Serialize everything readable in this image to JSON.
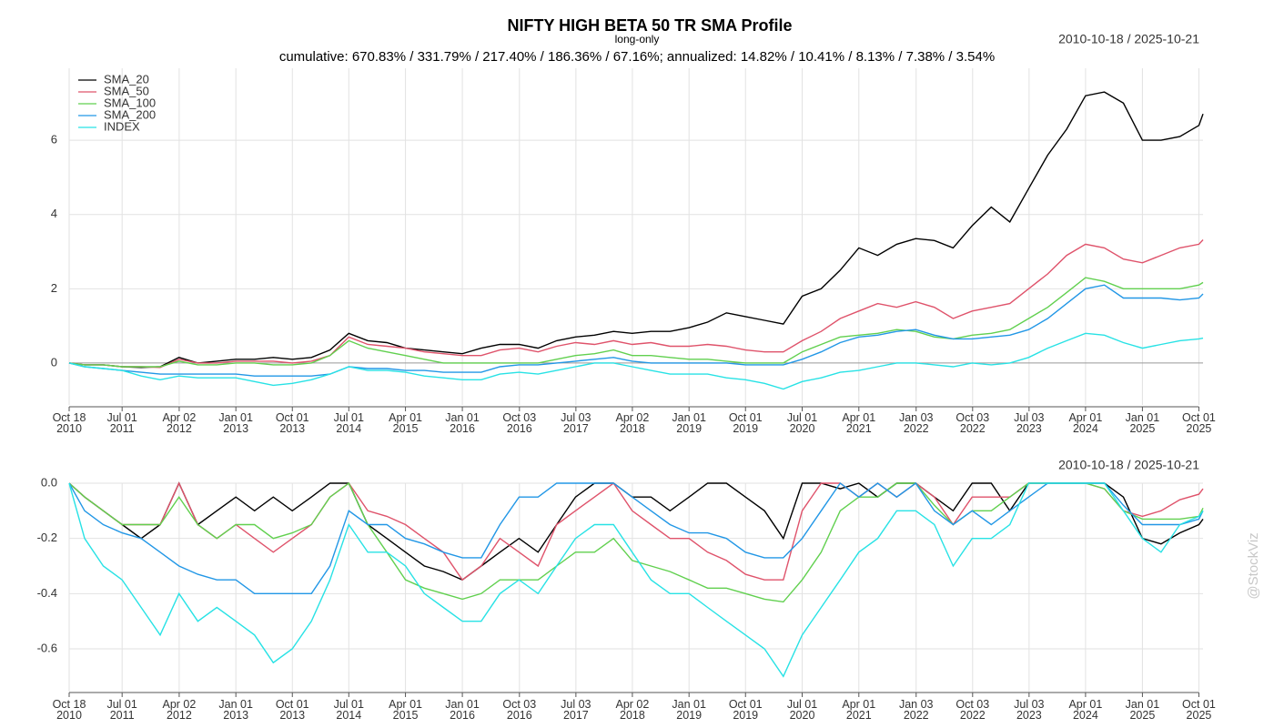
{
  "watermark": "@StockViz",
  "chart_data": [
    {
      "type": "line",
      "title": "NIFTY HIGH BETA 50 TR SMA Profile",
      "subtitle": "long-only",
      "annotation": "cumulative: 670.83% / 331.79% / 217.40% / 186.36% / 67.16%; annualized: 14.82% / 10.41% / 8.13% / 7.38% / 3.54%",
      "date_range": "2010-10-18 / 2025-10-21",
      "legend": "topleft",
      "grid": true,
      "xlim": [
        "2010-10-18",
        "2025-10-21"
      ],
      "ylim": [
        -1.13,
        7.94
      ],
      "yticks": [
        0,
        2,
        4,
        6
      ],
      "xticks": [
        {
          "value": "2010-10-18",
          "label": "Oct 18\n2010"
        },
        {
          "value": "2011-07-01",
          "label": "Jul 01\n2011"
        },
        {
          "value": "2012-04-02",
          "label": "Apr 02\n2012"
        },
        {
          "value": "2013-01-01",
          "label": "Jan 01\n2013"
        },
        {
          "value": "2013-10-01",
          "label": "Oct 01\n2013"
        },
        {
          "value": "2014-07-01",
          "label": "Jul 01\n2014"
        },
        {
          "value": "2015-04-01",
          "label": "Apr 01\n2015"
        },
        {
          "value": "2016-01-01",
          "label": "Jan 01\n2016"
        },
        {
          "value": "2016-10-03",
          "label": "Oct 03\n2016"
        },
        {
          "value": "2017-07-03",
          "label": "Jul 03\n2017"
        },
        {
          "value": "2018-04-02",
          "label": "Apr 02\n2018"
        },
        {
          "value": "2019-01-01",
          "label": "Jan 01\n2019"
        },
        {
          "value": "2019-10-01",
          "label": "Oct 01\n2019"
        },
        {
          "value": "2020-07-01",
          "label": "Jul 01\n2020"
        },
        {
          "value": "2021-04-01",
          "label": "Apr 01\n2021"
        },
        {
          "value": "2022-01-03",
          "label": "Jan 03\n2022"
        },
        {
          "value": "2022-10-03",
          "label": "Oct 03\n2022"
        },
        {
          "value": "2023-07-03",
          "label": "Jul 03\n2023"
        },
        {
          "value": "2024-04-01",
          "label": "Apr 01\n2024"
        },
        {
          "value": "2025-01-01",
          "label": "Jan 01\n2025"
        },
        {
          "value": "2025-10-01",
          "label": "Oct 01\n2025"
        }
      ],
      "x": [
        "2010-10-18",
        "2011-01-01",
        "2011-04-01",
        "2011-07-01",
        "2011-10-01",
        "2012-01-01",
        "2012-04-01",
        "2012-07-01",
        "2012-10-01",
        "2013-01-01",
        "2013-04-01",
        "2013-07-01",
        "2013-10-01",
        "2014-01-01",
        "2014-04-01",
        "2014-07-01",
        "2014-10-01",
        "2015-01-01",
        "2015-04-01",
        "2015-07-01",
        "2015-10-01",
        "2016-01-01",
        "2016-04-01",
        "2016-07-01",
        "2016-10-01",
        "2017-01-01",
        "2017-04-01",
        "2017-07-01",
        "2017-10-01",
        "2018-01-01",
        "2018-04-01",
        "2018-07-01",
        "2018-10-01",
        "2019-01-01",
        "2019-04-01",
        "2019-07-01",
        "2019-10-01",
        "2020-01-01",
        "2020-04-01",
        "2020-07-01",
        "2020-10-01",
        "2021-01-01",
        "2021-04-01",
        "2021-07-01",
        "2021-10-01",
        "2022-01-01",
        "2022-04-01",
        "2022-07-01",
        "2022-10-01",
        "2023-01-01",
        "2023-04-01",
        "2023-07-01",
        "2023-10-01",
        "2024-01-01",
        "2024-04-01",
        "2024-07-01",
        "2024-10-01",
        "2025-01-01",
        "2025-04-01",
        "2025-07-01",
        "2025-10-01",
        "2025-10-21"
      ],
      "series": [
        {
          "name": "SMA_20",
          "color": "#000000",
          "values": [
            0,
            -0.05,
            -0.05,
            -0.1,
            -0.12,
            -0.1,
            0.15,
            0.0,
            0.05,
            0.1,
            0.1,
            0.15,
            0.1,
            0.15,
            0.35,
            0.8,
            0.6,
            0.55,
            0.4,
            0.35,
            0.3,
            0.25,
            0.4,
            0.5,
            0.5,
            0.4,
            0.6,
            0.7,
            0.75,
            0.85,
            0.8,
            0.85,
            0.85,
            0.95,
            1.1,
            1.35,
            1.25,
            1.15,
            1.05,
            1.8,
            2.0,
            2.5,
            3.1,
            2.9,
            3.2,
            3.35,
            3.3,
            3.1,
            3.7,
            4.2,
            3.8,
            4.7,
            5.6,
            6.3,
            7.2,
            7.3,
            7.0,
            6.0,
            6.0,
            6.1,
            6.4,
            6.71
          ]
        },
        {
          "name": "SMA_50",
          "color": "#df536b",
          "values": [
            0,
            -0.05,
            -0.05,
            -0.1,
            -0.1,
            -0.12,
            0.1,
            0.0,
            0.0,
            0.05,
            0.05,
            0.05,
            0.0,
            0.05,
            0.2,
            0.7,
            0.5,
            0.45,
            0.4,
            0.3,
            0.25,
            0.2,
            0.2,
            0.35,
            0.4,
            0.3,
            0.45,
            0.55,
            0.5,
            0.6,
            0.5,
            0.55,
            0.45,
            0.45,
            0.5,
            0.45,
            0.35,
            0.3,
            0.3,
            0.6,
            0.85,
            1.2,
            1.4,
            1.6,
            1.5,
            1.65,
            1.5,
            1.2,
            1.4,
            1.5,
            1.6,
            2.0,
            2.4,
            2.9,
            3.2,
            3.1,
            2.8,
            2.7,
            2.9,
            3.1,
            3.2,
            3.32
          ]
        },
        {
          "name": "SMA_100",
          "color": "#61d04f",
          "values": [
            0,
            -0.05,
            -0.05,
            -0.1,
            -0.1,
            -0.1,
            0.05,
            -0.05,
            -0.05,
            0.0,
            0.0,
            -0.05,
            -0.05,
            0.0,
            0.2,
            0.6,
            0.4,
            0.3,
            0.2,
            0.1,
            0.0,
            0.0,
            0.0,
            0.0,
            0.0,
            0.0,
            0.1,
            0.2,
            0.25,
            0.35,
            0.2,
            0.2,
            0.15,
            0.1,
            0.1,
            0.05,
            0.0,
            0.0,
            0.0,
            0.3,
            0.5,
            0.7,
            0.75,
            0.8,
            0.9,
            0.85,
            0.7,
            0.65,
            0.75,
            0.8,
            0.9,
            1.2,
            1.5,
            1.9,
            2.3,
            2.2,
            2.0,
            2.0,
            2.0,
            2.0,
            2.1,
            2.17
          ]
        },
        {
          "name": "SMA_200",
          "color": "#2297e6",
          "values": [
            0,
            -0.1,
            -0.15,
            -0.2,
            -0.25,
            -0.3,
            -0.3,
            -0.3,
            -0.3,
            -0.3,
            -0.35,
            -0.35,
            -0.35,
            -0.35,
            -0.3,
            -0.1,
            -0.15,
            -0.15,
            -0.2,
            -0.2,
            -0.25,
            -0.25,
            -0.25,
            -0.1,
            -0.05,
            -0.05,
            0.0,
            0.05,
            0.1,
            0.15,
            0.05,
            0.0,
            0.0,
            0.0,
            0.0,
            0.0,
            -0.05,
            -0.05,
            -0.05,
            0.1,
            0.3,
            0.55,
            0.7,
            0.75,
            0.85,
            0.9,
            0.75,
            0.65,
            0.65,
            0.7,
            0.75,
            0.9,
            1.2,
            1.6,
            2.0,
            2.1,
            1.75,
            1.75,
            1.75,
            1.7,
            1.75,
            1.86
          ]
        },
        {
          "name": "INDEX",
          "color": "#28e2e5",
          "values": [
            0,
            -0.1,
            -0.15,
            -0.2,
            -0.35,
            -0.45,
            -0.35,
            -0.4,
            -0.4,
            -0.4,
            -0.5,
            -0.6,
            -0.55,
            -0.45,
            -0.3,
            -0.1,
            -0.2,
            -0.2,
            -0.25,
            -0.35,
            -0.4,
            -0.45,
            -0.45,
            -0.3,
            -0.25,
            -0.3,
            -0.2,
            -0.1,
            0.0,
            0.0,
            -0.1,
            -0.2,
            -0.3,
            -0.3,
            -0.3,
            -0.4,
            -0.45,
            -0.55,
            -0.7,
            -0.5,
            -0.4,
            -0.25,
            -0.2,
            -0.1,
            0.0,
            0.0,
            -0.05,
            -0.1,
            0.0,
            -0.05,
            0.0,
            0.15,
            0.4,
            0.6,
            0.8,
            0.75,
            0.55,
            0.4,
            0.5,
            0.6,
            0.65,
            0.67
          ]
        }
      ]
    },
    {
      "type": "line",
      "date_range": "2010-10-18 / 2025-10-21",
      "grid": true,
      "xlim": [
        "2010-10-18",
        "2025-10-21"
      ],
      "ylim": [
        -0.755,
        0.0
      ],
      "yticks": [
        {
          "value": 0,
          "label": "0.0"
        },
        -0.2,
        -0.4,
        -0.6
      ],
      "xticks": [
        {
          "value": "2010-10-18",
          "label": "Oct 18\n2010"
        },
        {
          "value": "2011-07-01",
          "label": "Jul 01\n2011"
        },
        {
          "value": "2012-04-02",
          "label": "Apr 02\n2012"
        },
        {
          "value": "2013-01-01",
          "label": "Jan 01\n2013"
        },
        {
          "value": "2013-10-01",
          "label": "Oct 01\n2013"
        },
        {
          "value": "2014-07-01",
          "label": "Jul 01\n2014"
        },
        {
          "value": "2015-04-01",
          "label": "Apr 01\n2015"
        },
        {
          "value": "2016-01-01",
          "label": "Jan 01\n2016"
        },
        {
          "value": "2016-10-03",
          "label": "Oct 03\n2016"
        },
        {
          "value": "2017-07-03",
          "label": "Jul 03\n2017"
        },
        {
          "value": "2018-04-02",
          "label": "Apr 02\n2018"
        },
        {
          "value": "2019-01-01",
          "label": "Jan 01\n2019"
        },
        {
          "value": "2019-10-01",
          "label": "Oct 01\n2019"
        },
        {
          "value": "2020-07-01",
          "label": "Jul 01\n2020"
        },
        {
          "value": "2021-04-01",
          "label": "Apr 01\n2021"
        },
        {
          "value": "2022-01-03",
          "label": "Jan 03\n2022"
        },
        {
          "value": "2022-10-03",
          "label": "Oct 03\n2022"
        },
        {
          "value": "2023-07-03",
          "label": "Jul 03\n2023"
        },
        {
          "value": "2024-04-01",
          "label": "Apr 01\n2024"
        },
        {
          "value": "2025-01-01",
          "label": "Jan 01\n2025"
        },
        {
          "value": "2025-10-01",
          "label": "Oct 01\n2025"
        }
      ],
      "x": [
        "2010-10-18",
        "2011-01-01",
        "2011-04-01",
        "2011-07-01",
        "2011-10-01",
        "2012-01-01",
        "2012-04-01",
        "2012-07-01",
        "2012-10-01",
        "2013-01-01",
        "2013-04-01",
        "2013-07-01",
        "2013-10-01",
        "2014-01-01",
        "2014-04-01",
        "2014-07-01",
        "2014-10-01",
        "2015-01-01",
        "2015-04-01",
        "2015-07-01",
        "2015-10-01",
        "2016-01-01",
        "2016-04-01",
        "2016-07-01",
        "2016-10-01",
        "2017-01-01",
        "2017-04-01",
        "2017-07-01",
        "2017-10-01",
        "2018-01-01",
        "2018-04-01",
        "2018-07-01",
        "2018-10-01",
        "2019-01-01",
        "2019-04-01",
        "2019-07-01",
        "2019-10-01",
        "2020-01-01",
        "2020-04-01",
        "2020-07-01",
        "2020-10-01",
        "2021-01-01",
        "2021-04-01",
        "2021-07-01",
        "2021-10-01",
        "2022-01-01",
        "2022-04-01",
        "2022-07-01",
        "2022-10-01",
        "2023-01-01",
        "2023-04-01",
        "2023-07-01",
        "2023-10-01",
        "2024-01-01",
        "2024-04-01",
        "2024-07-01",
        "2024-10-01",
        "2025-01-01",
        "2025-04-01",
        "2025-07-01",
        "2025-10-01",
        "2025-10-21"
      ],
      "series": [
        {
          "color": "#000000",
          "values": [
            0,
            -0.05,
            -0.1,
            -0.15,
            -0.2,
            -0.15,
            0,
            -0.15,
            -0.1,
            -0.05,
            -0.1,
            -0.05,
            -0.1,
            -0.05,
            0,
            0,
            -0.15,
            -0.2,
            -0.25,
            -0.3,
            -0.32,
            -0.35,
            -0.3,
            -0.25,
            -0.2,
            -0.25,
            -0.15,
            -0.05,
            0,
            0,
            -0.05,
            -0.05,
            -0.1,
            -0.05,
            0,
            0,
            -0.05,
            -0.1,
            -0.2,
            0,
            0,
            -0.02,
            0,
            -0.05,
            0,
            0,
            -0.05,
            -0.1,
            0,
            0,
            -0.1,
            0,
            0,
            0,
            0,
            0,
            -0.05,
            -0.2,
            -0.22,
            -0.18,
            -0.15,
            -0.13
          ]
        },
        {
          "color": "#df536b",
          "values": [
            0,
            -0.05,
            -0.1,
            -0.15,
            -0.15,
            -0.15,
            0,
            -0.15,
            -0.2,
            -0.15,
            -0.2,
            -0.25,
            -0.2,
            -0.15,
            -0.05,
            0,
            -0.1,
            -0.12,
            -0.15,
            -0.2,
            -0.25,
            -0.35,
            -0.3,
            -0.2,
            -0.25,
            -0.3,
            -0.15,
            -0.1,
            -0.05,
            0,
            -0.1,
            -0.15,
            -0.2,
            -0.2,
            -0.25,
            -0.28,
            -0.33,
            -0.35,
            -0.35,
            -0.1,
            0,
            0,
            -0.05,
            0,
            -0.05,
            0,
            -0.05,
            -0.15,
            -0.05,
            -0.05,
            -0.05,
            0,
            0,
            0,
            0,
            -0.02,
            -0.1,
            -0.12,
            -0.1,
            -0.06,
            -0.04,
            -0.02
          ]
        },
        {
          "color": "#61d04f",
          "values": [
            0,
            -0.05,
            -0.1,
            -0.15,
            -0.15,
            -0.15,
            -0.05,
            -0.15,
            -0.2,
            -0.15,
            -0.15,
            -0.2,
            -0.18,
            -0.15,
            -0.05,
            0,
            -0.15,
            -0.25,
            -0.35,
            -0.38,
            -0.4,
            -0.42,
            -0.4,
            -0.35,
            -0.35,
            -0.35,
            -0.3,
            -0.25,
            -0.25,
            -0.2,
            -0.28,
            -0.3,
            -0.32,
            -0.35,
            -0.38,
            -0.38,
            -0.4,
            -0.42,
            -0.43,
            -0.35,
            -0.25,
            -0.1,
            -0.05,
            -0.05,
            0,
            0,
            -0.08,
            -0.15,
            -0.1,
            -0.1,
            -0.05,
            0,
            0,
            0,
            0,
            -0.02,
            -0.1,
            -0.13,
            -0.13,
            -0.13,
            -0.12,
            -0.09
          ]
        },
        {
          "color": "#2297e6",
          "values": [
            0,
            -0.1,
            -0.15,
            -0.18,
            -0.2,
            -0.25,
            -0.3,
            -0.33,
            -0.35,
            -0.35,
            -0.4,
            -0.4,
            -0.4,
            -0.4,
            -0.3,
            -0.1,
            -0.15,
            -0.15,
            -0.2,
            -0.22,
            -0.25,
            -0.27,
            -0.27,
            -0.15,
            -0.05,
            -0.05,
            0,
            0,
            0,
            0,
            -0.05,
            -0.1,
            -0.15,
            -0.18,
            -0.18,
            -0.2,
            -0.25,
            -0.27,
            -0.27,
            -0.2,
            -0.1,
            0,
            -0.05,
            0,
            -0.05,
            0,
            -0.1,
            -0.15,
            -0.1,
            -0.15,
            -0.1,
            -0.05,
            0,
            0,
            0,
            0,
            -0.08,
            -0.15,
            -0.15,
            -0.15,
            -0.13,
            -0.1
          ]
        },
        {
          "color": "#28e2e5",
          "values": [
            0,
            -0.2,
            -0.3,
            -0.35,
            -0.45,
            -0.55,
            -0.4,
            -0.5,
            -0.45,
            -0.5,
            -0.55,
            -0.65,
            -0.6,
            -0.5,
            -0.35,
            -0.15,
            -0.25,
            -0.25,
            -0.3,
            -0.4,
            -0.45,
            -0.5,
            -0.5,
            -0.4,
            -0.35,
            -0.4,
            -0.3,
            -0.2,
            -0.15,
            -0.15,
            -0.25,
            -0.35,
            -0.4,
            -0.4,
            -0.45,
            -0.5,
            -0.55,
            -0.6,
            -0.7,
            -0.55,
            -0.45,
            -0.35,
            -0.25,
            -0.2,
            -0.1,
            -0.1,
            -0.15,
            -0.3,
            -0.2,
            -0.2,
            -0.15,
            0,
            0,
            0,
            0,
            0,
            -0.1,
            -0.2,
            -0.25,
            -0.15,
            -0.12,
            -0.1
          ]
        }
      ]
    }
  ]
}
